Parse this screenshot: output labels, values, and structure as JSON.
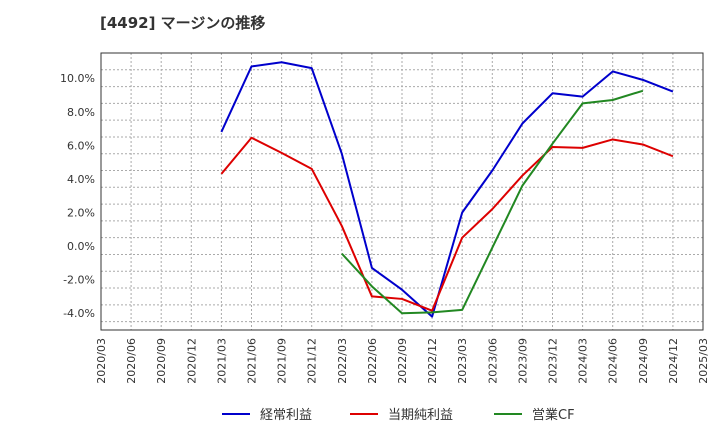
{
  "chart_data": {
    "type": "line",
    "title": "[4492]  マージンの推移",
    "xlabel": "",
    "ylabel": "",
    "ylim": [
      -5.0,
      11.5
    ],
    "yticks": [
      -4.0,
      -2.0,
      0.0,
      2.0,
      4.0,
      6.0,
      8.0,
      10.0
    ],
    "ytick_labels": [
      "-4.0%",
      "-2.0%",
      "0.0%",
      "2.0%",
      "4.0%",
      "6.0%",
      "8.0%",
      "10.0%"
    ],
    "categories": [
      "2020/03",
      "2020/06",
      "2020/09",
      "2020/12",
      "2021/03",
      "2021/06",
      "2021/09",
      "2021/12",
      "2022/03",
      "2022/06",
      "2022/09",
      "2022/12",
      "2023/03",
      "2023/06",
      "2023/09",
      "2023/12",
      "2024/03",
      "2024/06",
      "2024/09",
      "2024/12",
      "2025/03"
    ],
    "grid": true,
    "legend_position": "bottom",
    "series": [
      {
        "name": "経常利益",
        "color": "#0000cc",
        "values": [
          null,
          null,
          null,
          null,
          6.8,
          10.7,
          10.95,
          10.6,
          5.5,
          -1.3,
          -2.6,
          -4.2,
          2.0,
          4.5,
          7.3,
          9.1,
          8.9,
          10.4,
          9.9,
          9.2,
          null
        ]
      },
      {
        "name": "当期純利益",
        "color": "#dd0000",
        "values": [
          null,
          null,
          null,
          null,
          4.3,
          6.45,
          5.55,
          4.6,
          1.2,
          -3.0,
          -3.15,
          -3.85,
          0.5,
          2.2,
          4.2,
          5.9,
          5.85,
          6.35,
          6.05,
          5.35,
          null
        ]
      },
      {
        "name": "営業CF",
        "color": "#228822",
        "values": [
          null,
          null,
          null,
          null,
          null,
          null,
          null,
          null,
          -0.45,
          -2.4,
          -4.0,
          -3.95,
          -3.8,
          -0.1,
          3.6,
          6.1,
          8.5,
          8.7,
          9.25,
          null,
          null
        ]
      }
    ]
  }
}
